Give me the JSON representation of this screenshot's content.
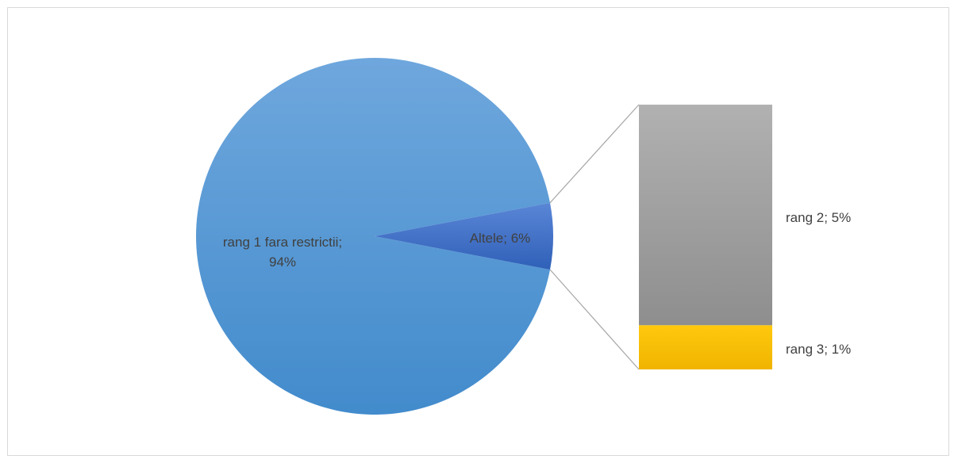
{
  "chart_data": {
    "type": "pie",
    "subtype": "bar-of-pie",
    "main_pie": [
      {
        "label": "rang 1 fara restrictii",
        "value": 94,
        "display": "94%",
        "color": "#5b9bd5"
      },
      {
        "label": "Altele",
        "value": 6,
        "display": "6%",
        "color": "#4472c4"
      }
    ],
    "breakout_of": "Altele",
    "breakout_bar": [
      {
        "label": "rang 2",
        "value": 5,
        "display": "5%",
        "color": "#a5a5a5"
      },
      {
        "label": "rang 3",
        "value": 1,
        "display": "1%",
        "color": "#ffc000"
      }
    ],
    "data_labels": {
      "rang1_line1": "rang 1 fara restrictii;",
      "rang1_line2": "94%",
      "altele": "Altele; 6%",
      "rang2": "rang 2; 5%",
      "rang3": "rang 3; 1%"
    },
    "legend": "none",
    "grid": false
  }
}
